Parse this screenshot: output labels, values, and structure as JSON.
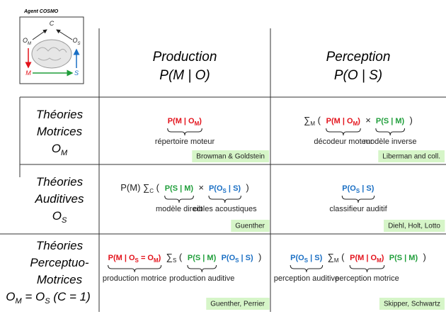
{
  "agent": {
    "label": "Agent COSMO",
    "nodes": {
      "c": {
        "text": "C"
      },
      "om": {
        "text": "O",
        "sub": "M"
      },
      "os": {
        "text": "O",
        "sub": "S"
      },
      "m": {
        "text": "M"
      },
      "s": {
        "text": "S"
      }
    }
  },
  "columns": [
    {
      "title": "Production",
      "formula": "P(M | O)"
    },
    {
      "title": "Perception",
      "formula": "P(O | S)"
    }
  ],
  "rows": [
    {
      "label": [
        "Théories",
        "Motrices"
      ],
      "variable": [
        {
          "text": "O"
        },
        {
          "sub": "M"
        }
      ],
      "cells": [
        {
          "parts": [
            {
              "color": "#e3121b",
              "tokens": [
                {
                  "text": "P(M | O"
                },
                {
                  "sub": "M"
                },
                {
                  "text": ")"
                }
              ],
              "brace": "répertoire moteur"
            }
          ],
          "cite": "Browman & Goldstein"
        },
        {
          "parts": [
            {
              "tokens": [
                {
                  "text": "∑"
                },
                {
                  "sub": "M"
                },
                {
                  "text": " ("
                }
              ]
            },
            {
              "color": "#e3121b",
              "tokens": [
                {
                  "text": "P(M | O"
                },
                {
                  "sub": "M"
                },
                {
                  "text": ")"
                }
              ],
              "brace": "décodeur moteur"
            },
            {
              "tokens": [
                {
                  "text": "×"
                }
              ]
            },
            {
              "color": "#1f9e3a",
              "tokens": [
                {
                  "text": "P(S | M)"
                }
              ],
              "brace": "modèle inverse"
            },
            {
              "tokens": [
                {
                  "text": ")"
                }
              ]
            }
          ],
          "cite": "Liberman and coll."
        }
      ]
    },
    {
      "label": [
        "Théories",
        "Auditives"
      ],
      "variable": [
        {
          "text": "O"
        },
        {
          "sub": "S"
        }
      ],
      "cells": [
        {
          "parts": [
            {
              "tokens": [
                {
                  "text": "P(M) ∑"
                },
                {
                  "sub": "C"
                },
                {
                  "text": " ("
                }
              ]
            },
            {
              "color": "#1f9e3a",
              "tokens": [
                {
                  "text": "P(S | M)"
                }
              ],
              "brace": "modèle direct"
            },
            {
              "tokens": [
                {
                  "text": "×"
                }
              ]
            },
            {
              "color": "#1a6fc4",
              "tokens": [
                {
                  "text": "P(O"
                },
                {
                  "sub": "S"
                },
                {
                  "text": " | S)"
                }
              ],
              "brace": "cibles acoustiques"
            },
            {
              "tokens": [
                {
                  "text": ")"
                }
              ]
            }
          ],
          "cite": "Guenther"
        },
        {
          "parts": [
            {
              "color": "#1a6fc4",
              "tokens": [
                {
                  "text": "P(O"
                },
                {
                  "sub": "S"
                },
                {
                  "text": " | S)"
                }
              ],
              "brace": "classifieur auditif"
            }
          ],
          "cite": "Diehl, Holt, Lotto"
        }
      ]
    },
    {
      "label": [
        "Théories",
        "Perceptuo-",
        "Motrices"
      ],
      "variable": [
        {
          "text": "O"
        },
        {
          "sub": "M"
        },
        {
          "text": " = O"
        },
        {
          "sub": "S"
        },
        {
          "text": "  (C = 1)"
        }
      ],
      "cells": [
        {
          "parts": [
            {
              "color": "#e3121b",
              "tokens": [
                {
                  "text": "P(M | O"
                },
                {
                  "sub": "S"
                },
                {
                  "text": " = O"
                },
                {
                  "sub": "M"
                },
                {
                  "text": ")"
                }
              ],
              "brace": "production motrice"
            },
            {
              "tokens": [
                {
                  "text": "∑"
                },
                {
                  "sub": "S"
                },
                {
                  "text": " ("
                }
              ]
            },
            {
              "color": "#1f9e3a",
              "tokens": [
                {
                  "text": "P(S | M)"
                }
              ],
              "brace": "production auditive"
            },
            {
              "color": "#1a6fc4",
              "tokens": [
                {
                  "text": "P(O"
                },
                {
                  "sub": "S"
                },
                {
                  "text": " | S)"
                }
              ]
            },
            {
              "tokens": [
                {
                  "text": ")"
                }
              ]
            }
          ],
          "cite": "Guenther, Perrier"
        },
        {
          "parts": [
            {
              "color": "#1a6fc4",
              "tokens": [
                {
                  "text": "P(O"
                },
                {
                  "sub": "S"
                },
                {
                  "text": " | S)"
                }
              ],
              "brace": "perception auditive"
            },
            {
              "tokens": [
                {
                  "text": "∑"
                },
                {
                  "sub": "M"
                },
                {
                  "text": " ("
                }
              ]
            },
            {
              "color": "#e3121b",
              "tokens": [
                {
                  "text": "P(M | O"
                },
                {
                  "sub": "M"
                },
                {
                  "text": ")"
                }
              ],
              "brace": "perception motrice"
            },
            {
              "color": "#1f9e3a",
              "tokens": [
                {
                  "text": "P(S | M)"
                }
              ]
            },
            {
              "tokens": [
                {
                  "text": ")"
                }
              ]
            }
          ],
          "cite": "Skipper, Schwartz"
        }
      ]
    }
  ]
}
